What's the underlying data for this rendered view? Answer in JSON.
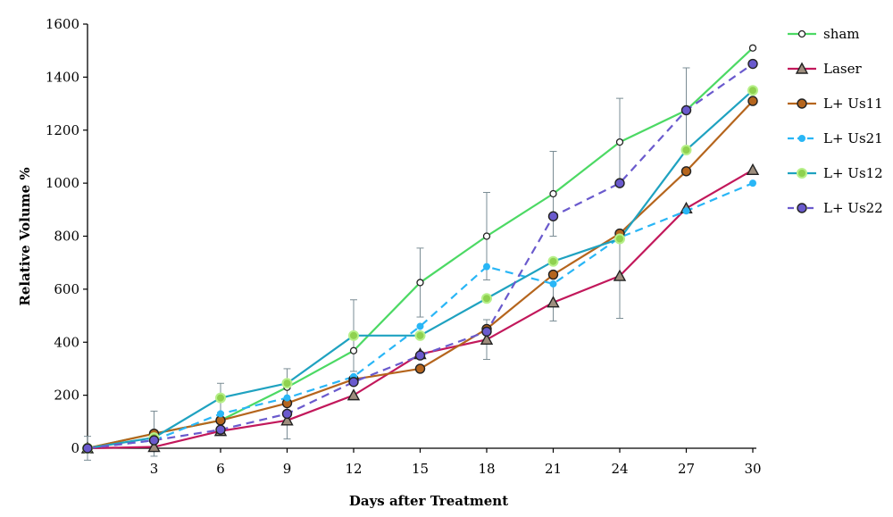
{
  "chart_data": {
    "type": "line",
    "title": "",
    "xlabel": "Days after Treatment",
    "ylabel": "Relative Volume %",
    "x": [
      0,
      3,
      6,
      9,
      12,
      15,
      18,
      21,
      24,
      27,
      30
    ],
    "x_tick_labels": [
      "3",
      "6",
      "9",
      "12",
      "15",
      "18",
      "21",
      "24",
      "27",
      "30"
    ],
    "y_ticks": [
      0,
      200,
      400,
      600,
      800,
      1000,
      1200,
      1400,
      1600
    ],
    "xlim": [
      0,
      30
    ],
    "ylim": [
      0,
      1600
    ],
    "grid": false,
    "legend_position": "right",
    "series": [
      {
        "name": "sham",
        "color": "#4cd964",
        "line_style": "solid",
        "marker": "small-open-circle",
        "values": [
          0,
          55,
          105,
          230,
          368,
          625,
          800,
          960,
          1155,
          1275,
          1510
        ],
        "errors": [
          45,
          85,
          0,
          70,
          0,
          130,
          165,
          160,
          165,
          160,
          0
        ]
      },
      {
        "name": "Laser",
        "color": "#c2185b",
        "line_style": "solid",
        "marker": "triangle",
        "values": [
          0,
          5,
          65,
          105,
          200,
          355,
          410,
          550,
          650,
          905,
          1050
        ],
        "errors": [
          0,
          0,
          0,
          70,
          0,
          0,
          75,
          70,
          160,
          0,
          0
        ]
      },
      {
        "name": "L+ Us11",
        "color": "#b5651d",
        "line_style": "solid",
        "marker": "circle",
        "values": [
          0,
          55,
          105,
          170,
          260,
          300,
          450,
          655,
          810,
          1045,
          1310
        ],
        "errors": [
          0,
          0,
          0,
          70,
          0,
          0,
          0,
          0,
          0,
          0,
          0
        ]
      },
      {
        "name": "L+ Us21",
        "color": "#29b6f6",
        "line_style": "dashed",
        "marker": "small-circle",
        "values": [
          0,
          30,
          130,
          190,
          270,
          460,
          685,
          620,
          795,
          895,
          1000
        ],
        "errors": [
          0,
          0,
          0,
          0,
          0,
          0,
          0,
          0,
          0,
          0,
          0
        ]
      },
      {
        "name": "L+ Us12",
        "color": "#1fa2c0",
        "line_style": "solid",
        "marker": "green-circle",
        "values": [
          0,
          40,
          190,
          245,
          425,
          425,
          565,
          705,
          790,
          1125,
          1350
        ],
        "errors": [
          0,
          0,
          55,
          0,
          135,
          0,
          0,
          0,
          0,
          0,
          0
        ]
      },
      {
        "name": "L+ Us22",
        "color": "#6a5acd",
        "line_style": "dashed",
        "marker": "circle",
        "values": [
          0,
          30,
          70,
          130,
          250,
          350,
          440,
          875,
          1000,
          1275,
          1450
        ],
        "errors": [
          0,
          0,
          0,
          0,
          0,
          0,
          0,
          0,
          0,
          0,
          0
        ]
      }
    ]
  }
}
